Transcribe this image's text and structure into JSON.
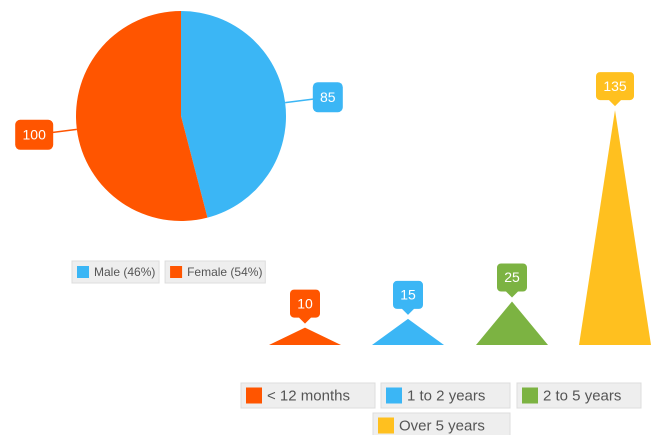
{
  "chart_data": [
    {
      "type": "pie",
      "categories": [
        "Male (46%)",
        "Female (54%)"
      ],
      "values": [
        85,
        100
      ],
      "colors": [
        "#3bb6f5",
        "#ff5500"
      ]
    },
    {
      "type": "triangle",
      "categories": [
        "< 12 months",
        "1 to 2 years",
        "2 to 5 years",
        "Over 5 years"
      ],
      "values": [
        10,
        15,
        25,
        135
      ],
      "colors": [
        "#ff5500",
        "#3bb6f5",
        "#7cb342",
        "#ffc01f"
      ]
    }
  ]
}
